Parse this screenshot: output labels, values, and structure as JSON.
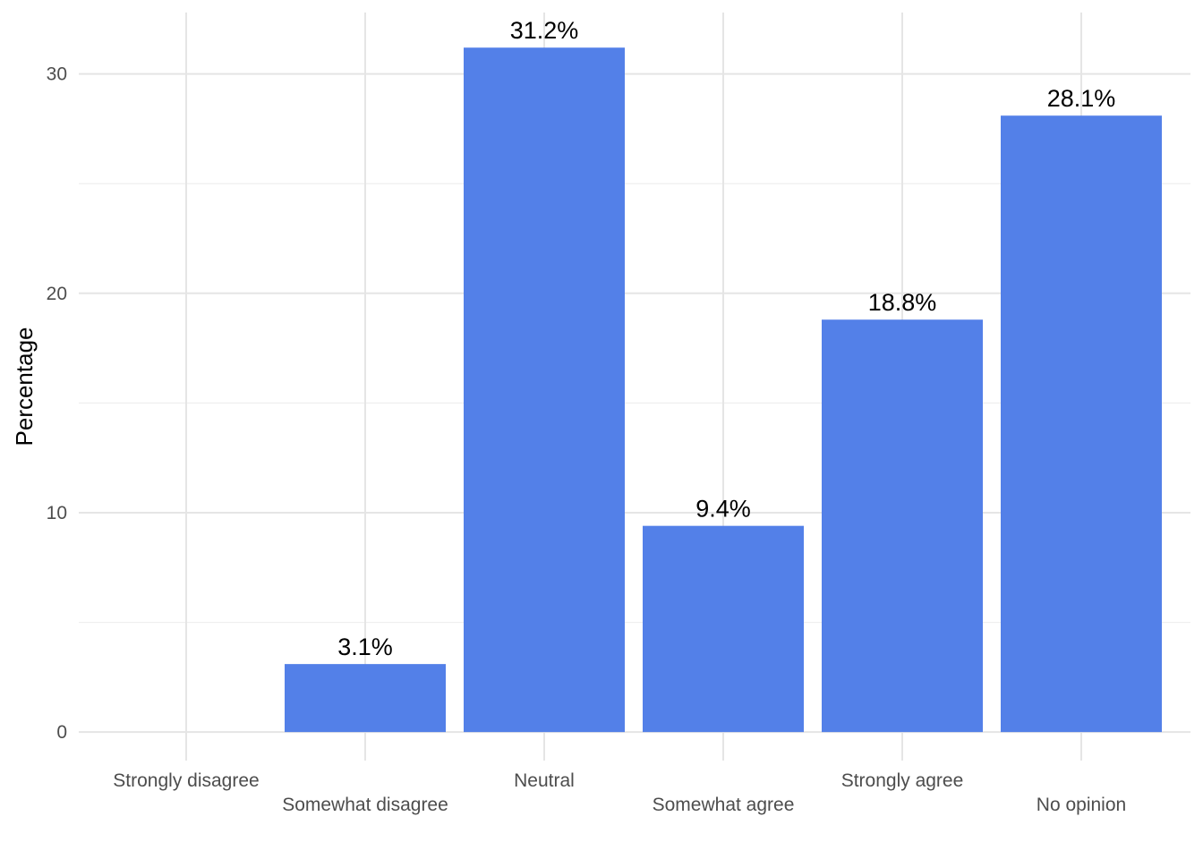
{
  "chart_data": {
    "type": "bar",
    "categories": [
      "Strongly disagree",
      "Somewhat disagree",
      "Neutral",
      "Somewhat agree",
      "Strongly agree",
      "No opinion"
    ],
    "values": [
      0,
      3.1,
      31.2,
      9.4,
      18.8,
      28.1
    ],
    "data_labels": [
      "",
      "3.1%",
      "31.2%",
      "9.4%",
      "18.8%",
      "28.1%"
    ],
    "title": "",
    "xlabel": "",
    "ylabel": "Percentage",
    "ylim": [
      -1.3,
      32.8
    ],
    "yticks": [
      0,
      10,
      20,
      30
    ],
    "yminor_ticks": [
      5,
      15,
      25
    ],
    "grid": true,
    "legend": "none",
    "bar_color": "#5380E8",
    "x_tick_label_stagger": true
  }
}
